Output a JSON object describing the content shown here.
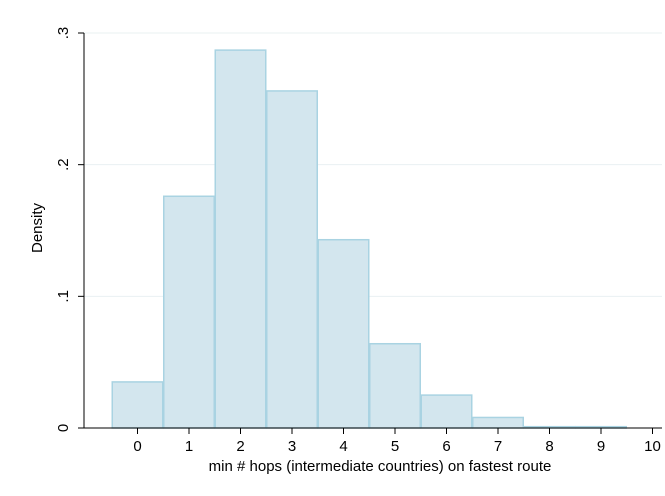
{
  "chart_data": {
    "type": "bar",
    "title": "",
    "xlabel": "min # hops (intermediate countries) on fastest route",
    "ylabel": "Density",
    "xlim": [
      -1,
      10
    ],
    "ylim": [
      0,
      0.3
    ],
    "x_ticks": [
      {
        "value": 0,
        "label": "0"
      },
      {
        "value": 1,
        "label": "1"
      },
      {
        "value": 2,
        "label": "2"
      },
      {
        "value": 3,
        "label": "3"
      },
      {
        "value": 4,
        "label": "4"
      },
      {
        "value": 5,
        "label": "5"
      },
      {
        "value": 6,
        "label": "6"
      },
      {
        "value": 7,
        "label": "7"
      },
      {
        "value": 8,
        "label": "8"
      },
      {
        "value": 9,
        "label": "9"
      },
      {
        "value": 10,
        "label": "10"
      }
    ],
    "y_ticks": [
      {
        "value": 0,
        "label": "0"
      },
      {
        "value": 0.1,
        "label": ".1"
      },
      {
        "value": 0.2,
        "label": ".2"
      },
      {
        "value": 0.3,
        "label": ".3"
      }
    ],
    "bin_width": 1,
    "bins": [
      {
        "x": 0,
        "value": 0.035
      },
      {
        "x": 1,
        "value": 0.176
      },
      {
        "x": 2,
        "value": 0.287
      },
      {
        "x": 3,
        "value": 0.256
      },
      {
        "x": 4,
        "value": 0.143
      },
      {
        "x": 5,
        "value": 0.064
      },
      {
        "x": 6,
        "value": 0.025
      },
      {
        "x": 7,
        "value": 0.008
      },
      {
        "x": 8,
        "value": 0.001
      },
      {
        "x": 9,
        "value": 0.001
      }
    ],
    "grid": true,
    "legend": "none",
    "colors": {
      "bar_fill": "#d3e6ee",
      "bar_stroke": "#a9d3e2",
      "grid": "#eaf0f2",
      "axis": "#000000"
    }
  }
}
